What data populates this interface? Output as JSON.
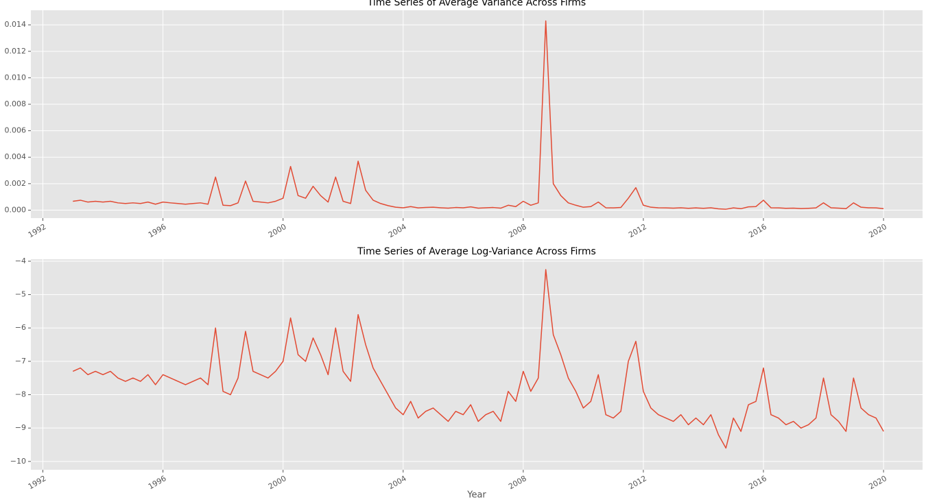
{
  "chart_data": [
    {
      "type": "line",
      "title": "Time Series of Average Variance Across Firms",
      "xlim": [
        1991.6,
        2021.3
      ],
      "xticks": [
        1992,
        1996,
        2000,
        2004,
        2008,
        2012,
        2016,
        2020
      ],
      "ylim": [
        -0.0006,
        0.0151
      ],
      "yticks": [
        {
          "value": 0,
          "label": "0.000"
        },
        {
          "value": 0.002,
          "label": "0.002"
        },
        {
          "value": 0.004,
          "label": "0.004"
        },
        {
          "value": 0.006,
          "label": "0.006"
        },
        {
          "value": 0.008,
          "label": "0.008"
        },
        {
          "value": 0.01,
          "label": "0.010"
        },
        {
          "value": 0.012,
          "label": "0.012"
        },
        {
          "value": 0.014,
          "label": "0.014"
        }
      ],
      "grid": true,
      "x": [
        1993,
        1993.25,
        1993.5,
        1993.75,
        1994,
        1994.25,
        1994.5,
        1994.75,
        1995,
        1995.25,
        1995.5,
        1995.75,
        1996,
        1996.25,
        1996.5,
        1996.75,
        1997,
        1997.25,
        1997.5,
        1997.75,
        1998,
        1998.25,
        1998.5,
        1998.75,
        1999,
        1999.25,
        1999.5,
        1999.75,
        2000,
        2000.25,
        2000.5,
        2000.75,
        2001,
        2001.25,
        2001.5,
        2001.75,
        2002,
        2002.25,
        2002.5,
        2002.75,
        2003,
        2003.25,
        2003.5,
        2003.75,
        2004,
        2004.25,
        2004.5,
        2004.75,
        2005,
        2005.25,
        2005.5,
        2005.75,
        2006,
        2006.25,
        2006.5,
        2006.75,
        2007,
        2007.25,
        2007.5,
        2007.75,
        2008,
        2008.25,
        2008.5,
        2008.75,
        2009,
        2009.25,
        2009.5,
        2009.75,
        2010,
        2010.25,
        2010.5,
        2010.75,
        2011,
        2011.25,
        2011.5,
        2011.75,
        2012,
        2012.25,
        2012.5,
        2012.75,
        2013,
        2013.25,
        2013.5,
        2013.75,
        2014,
        2014.25,
        2014.5,
        2014.75,
        2015,
        2015.25,
        2015.5,
        2015.75,
        2016,
        2016.25,
        2016.5,
        2016.75,
        2017,
        2017.25,
        2017.5,
        2017.75,
        2018,
        2018.25,
        2018.5,
        2018.75,
        2019,
        2019.25,
        2019.5,
        2019.75,
        2020
      ],
      "series": [
        {
          "color": "#e24a33",
          "values": [
            0.00067,
            0.00075,
            0.00061,
            0.00067,
            0.00061,
            0.00067,
            0.00055,
            0.0005,
            0.00055,
            0.0005,
            0.00061,
            0.00045,
            0.00061,
            0.00055,
            0.0005,
            0.00045,
            0.0005,
            0.00055,
            0.00045,
            0.0025,
            0.00037,
            0.00034,
            0.00055,
            0.0022,
            0.00067,
            0.00061,
            0.00055,
            0.00067,
            0.0009,
            0.0033,
            0.0011,
            0.0009,
            0.0018,
            0.0011,
            0.00061,
            0.0025,
            0.00067,
            0.0005,
            0.0037,
            0.0015,
            0.00075,
            0.0005,
            0.00034,
            0.00022,
            0.00018,
            0.00027,
            0.00017,
            0.0002,
            0.00022,
            0.00018,
            0.00015,
            0.0002,
            0.00018,
            0.00025,
            0.00015,
            0.00018,
            0.0002,
            0.00015,
            0.00037,
            0.00027,
            0.00067,
            0.00037,
            0.00055,
            0.0143,
            0.002,
            0.0011,
            0.00055,
            0.00037,
            0.00022,
            0.00027,
            0.00061,
            0.00018,
            0.00017,
            0.0002,
            0.0009,
            0.0017,
            0.00037,
            0.00022,
            0.00018,
            0.00017,
            0.00015,
            0.00018,
            0.00014,
            0.00017,
            0.00014,
            0.00018,
            0.0001,
            7e-05,
            0.00017,
            0.00011,
            0.00025,
            0.00027,
            0.00075,
            0.00018,
            0.00017,
            0.00014,
            0.00015,
            0.00012,
            0.00014,
            0.00017,
            0.00055,
            0.00018,
            0.00015,
            0.00011,
            0.00055,
            0.00022,
            0.00018,
            0.00017,
            0.00011
          ]
        }
      ]
    },
    {
      "type": "line",
      "title": "Time Series of Average Log-Variance Across Firms",
      "xlabel": "Year",
      "xlim": [
        1991.6,
        2021.3
      ],
      "xticks": [
        1992,
        1996,
        2000,
        2004,
        2008,
        2012,
        2016,
        2020
      ],
      "ylim": [
        -10.25,
        -3.94
      ],
      "yticks": [
        {
          "value": -10,
          "label": "−10"
        },
        {
          "value": -9,
          "label": "−9"
        },
        {
          "value": -8,
          "label": "−8"
        },
        {
          "value": -7,
          "label": "−7"
        },
        {
          "value": -6,
          "label": "−6"
        },
        {
          "value": -5,
          "label": "−5"
        },
        {
          "value": -4,
          "label": "−4"
        }
      ],
      "grid": true,
      "x": [
        1993,
        1993.25,
        1993.5,
        1993.75,
        1994,
        1994.25,
        1994.5,
        1994.75,
        1995,
        1995.25,
        1995.5,
        1995.75,
        1996,
        1996.25,
        1996.5,
        1996.75,
        1997,
        1997.25,
        1997.5,
        1997.75,
        1998,
        1998.25,
        1998.5,
        1998.75,
        1999,
        1999.25,
        1999.5,
        1999.75,
        2000,
        2000.25,
        2000.5,
        2000.75,
        2001,
        2001.25,
        2001.5,
        2001.75,
        2002,
        2002.25,
        2002.5,
        2002.75,
        2003,
        2003.25,
        2003.5,
        2003.75,
        2004,
        2004.25,
        2004.5,
        2004.75,
        2005,
        2005.25,
        2005.5,
        2005.75,
        2006,
        2006.25,
        2006.5,
        2006.75,
        2007,
        2007.25,
        2007.5,
        2007.75,
        2008,
        2008.25,
        2008.5,
        2008.75,
        2009,
        2009.25,
        2009.5,
        2009.75,
        2010,
        2010.25,
        2010.5,
        2010.75,
        2011,
        2011.25,
        2011.5,
        2011.75,
        2012,
        2012.25,
        2012.5,
        2012.75,
        2013,
        2013.25,
        2013.5,
        2013.75,
        2014,
        2014.25,
        2014.5,
        2014.75,
        2015,
        2015.25,
        2015.5,
        2015.75,
        2016,
        2016.25,
        2016.5,
        2016.75,
        2017,
        2017.25,
        2017.5,
        2017.75,
        2018,
        2018.25,
        2018.5,
        2018.75,
        2019,
        2019.25,
        2019.5,
        2019.75,
        2020
      ],
      "series": [
        {
          "color": "#e24a33",
          "values": [
            -7.3,
            -7.2,
            -7.4,
            -7.3,
            -7.4,
            -7.3,
            -7.5,
            -7.6,
            -7.5,
            -7.6,
            -7.4,
            -7.7,
            -7.4,
            -7.5,
            -7.6,
            -7.7,
            -7.6,
            -7.5,
            -7.7,
            -6.0,
            -7.9,
            -8.0,
            -7.5,
            -6.1,
            -7.3,
            -7.4,
            -7.5,
            -7.3,
            -7.0,
            -5.7,
            -6.8,
            -7.0,
            -6.3,
            -6.8,
            -7.4,
            -6.0,
            -7.3,
            -7.6,
            -5.6,
            -6.5,
            -7.2,
            -7.6,
            -8.0,
            -8.4,
            -8.6,
            -8.2,
            -8.7,
            -8.5,
            -8.4,
            -8.6,
            -8.8,
            -8.5,
            -8.6,
            -8.3,
            -8.8,
            -8.6,
            -8.5,
            -8.8,
            -7.9,
            -8.2,
            -7.3,
            -7.9,
            -7.5,
            -4.25,
            -6.2,
            -6.8,
            -7.5,
            -7.9,
            -8.4,
            -8.2,
            -7.4,
            -8.6,
            -8.7,
            -8.5,
            -7.0,
            -6.4,
            -7.9,
            -8.4,
            -8.6,
            -8.7,
            -8.8,
            -8.6,
            -8.9,
            -8.7,
            -8.9,
            -8.6,
            -9.2,
            -9.6,
            -8.7,
            -9.1,
            -8.3,
            -8.2,
            -7.2,
            -8.6,
            -8.7,
            -8.9,
            -8.8,
            -9.0,
            -8.9,
            -8.7,
            -7.5,
            -8.6,
            -8.8,
            -9.1,
            -7.5,
            -8.4,
            -8.6,
            -8.7,
            -9.1
          ]
        }
      ]
    }
  ]
}
